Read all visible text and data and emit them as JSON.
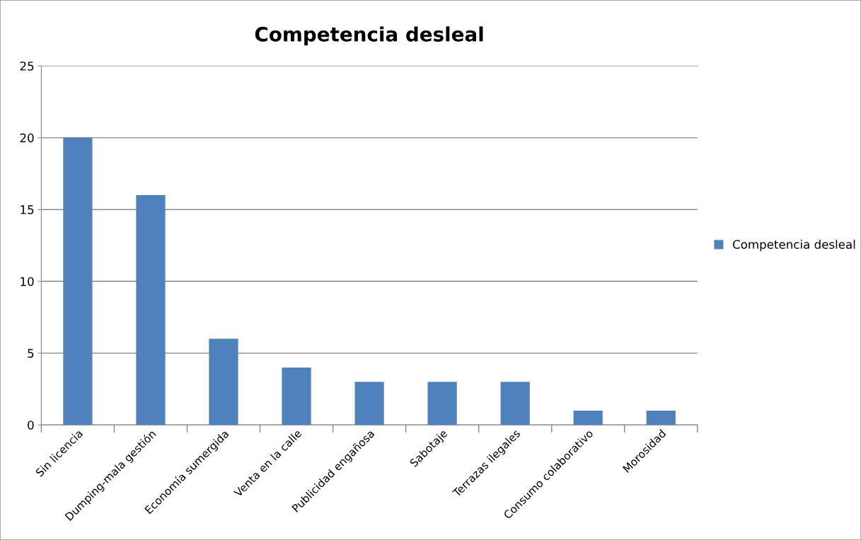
{
  "chart_data": {
    "type": "bar",
    "title": "Competencia desleal",
    "categories": [
      "Sin licencia",
      "Dumping-mala gestión",
      "Economía sumergida",
      "Venta en la calle",
      "Publicidad engañosa",
      "Sabotaje",
      "Terrazas ilegales",
      "Consumo colaborativo",
      "Morosidad"
    ],
    "series": [
      {
        "name": "Competencia desleal",
        "color": "#4f81bd",
        "values": [
          20,
          16,
          6,
          4,
          3,
          3,
          3,
          1,
          1
        ]
      }
    ],
    "ylim": [
      0,
      25
    ],
    "yticks": [
      0,
      5,
      10,
      15,
      20,
      25
    ],
    "grid": "y",
    "legend": "right"
  }
}
